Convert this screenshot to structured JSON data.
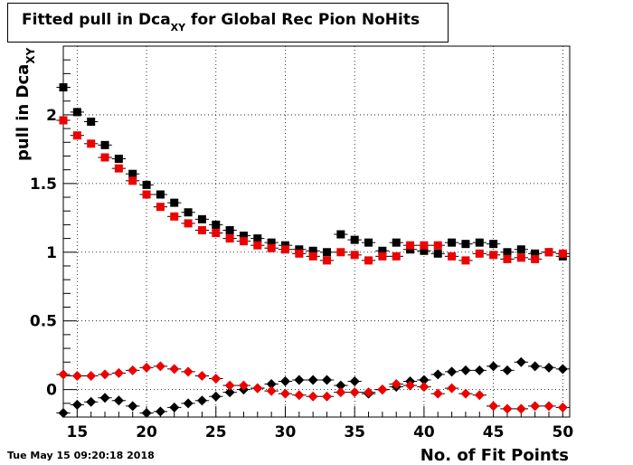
{
  "timestamp": "Tue May 15 09:20:18 2018",
  "colors": {
    "black_series": "#000000",
    "red_series": "#ee0000",
    "grid": "#000000"
  },
  "chart_data": {
    "type": "scatter",
    "title_main": "Fitted pull in Dca",
    "title_sub": "XY",
    "title_rest": " for Global Rec Pion NoHits",
    "xlabel": "No. of Fit Points",
    "ylabel_main": "pull in Dca",
    "ylabel_sub": "XY",
    "xlim": [
      14,
      50.5
    ],
    "ylim": [
      -0.2,
      2.5
    ],
    "xticks": [
      15,
      20,
      25,
      30,
      35,
      40,
      45,
      50
    ],
    "yticks": [
      0,
      0.5,
      1,
      1.5,
      2
    ],
    "ytick_labels": [
      "0",
      "0.5",
      "1",
      "1.5",
      "2"
    ],
    "grid": true,
    "x": [
      14,
      15,
      16,
      17,
      18,
      19,
      20,
      21,
      22,
      23,
      24,
      25,
      26,
      27,
      28,
      29,
      30,
      31,
      32,
      33,
      34,
      35,
      36,
      37,
      38,
      39,
      40,
      41,
      42,
      43,
      44,
      45,
      46,
      47,
      48,
      49,
      50
    ],
    "series": [
      {
        "color": "#000000",
        "marker": "square",
        "values": [
          2.2,
          2.02,
          1.95,
          1.78,
          1.68,
          1.57,
          1.49,
          1.42,
          1.36,
          1.29,
          1.24,
          1.2,
          1.16,
          1.12,
          1.1,
          1.07,
          1.05,
          1.02,
          1.01,
          1.0,
          1.13,
          1.09,
          1.07,
          1.01,
          1.07,
          1.02,
          1.01,
          0.99,
          1.07,
          1.06,
          1.07,
          1.06,
          1.0,
          1.02,
          0.99,
          1.0,
          0.97
        ]
      },
      {
        "color": "#ee0000",
        "marker": "square",
        "values": [
          1.96,
          1.85,
          1.79,
          1.69,
          1.61,
          1.52,
          1.42,
          1.33,
          1.26,
          1.21,
          1.16,
          1.14,
          1.1,
          1.08,
          1.05,
          1.03,
          1.02,
          0.99,
          0.97,
          0.94,
          1.0,
          0.98,
          0.94,
          0.97,
          0.97,
          1.05,
          1.05,
          1.05,
          0.97,
          0.94,
          0.99,
          0.98,
          0.95,
          0.96,
          0.95,
          1.0,
          0.99
        ]
      },
      {
        "color": "#000000",
        "marker": "diamond",
        "values": [
          -0.17,
          -0.11,
          -0.09,
          -0.06,
          -0.08,
          -0.12,
          -0.17,
          -0.16,
          -0.13,
          -0.1,
          -0.08,
          -0.05,
          -0.02,
          0.0,
          0.01,
          0.04,
          0.06,
          0.07,
          0.07,
          0.07,
          0.03,
          0.06,
          -0.03,
          0.0,
          0.02,
          0.06,
          0.07,
          0.11,
          0.13,
          0.14,
          0.14,
          0.17,
          0.14,
          0.2,
          0.17,
          0.16,
          0.15
        ]
      },
      {
        "color": "#ee0000",
        "marker": "diamond",
        "values": [
          0.11,
          0.1,
          0.1,
          0.11,
          0.12,
          0.14,
          0.16,
          0.17,
          0.15,
          0.13,
          0.1,
          0.08,
          0.03,
          0.03,
          0.01,
          -0.01,
          -0.03,
          -0.04,
          -0.05,
          -0.05,
          -0.02,
          -0.02,
          -0.02,
          0.0,
          0.04,
          0.03,
          0.02,
          -0.03,
          0.01,
          -0.03,
          -0.04,
          -0.12,
          -0.14,
          -0.14,
          -0.12,
          -0.12,
          -0.13
        ]
      }
    ]
  }
}
